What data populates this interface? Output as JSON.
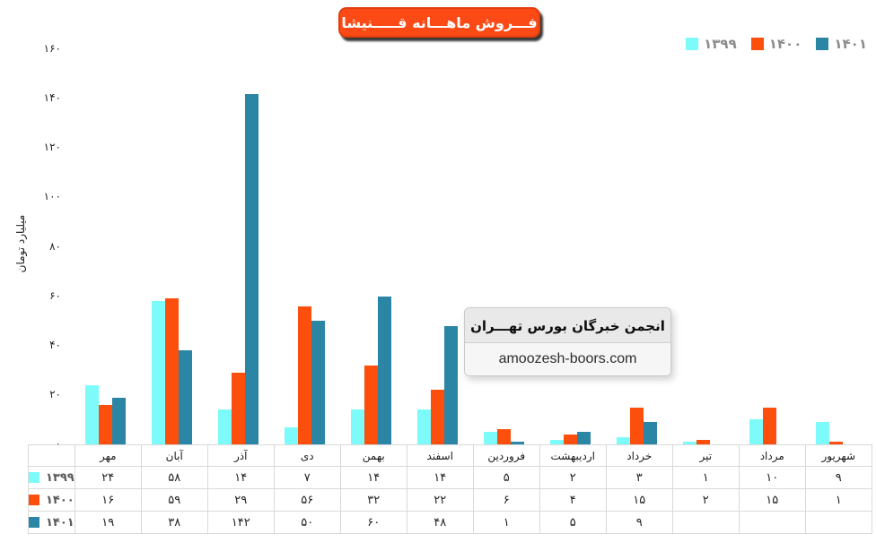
{
  "title": "فـــروش ماهـــانه قـــــنیشا",
  "watermark": {
    "line1": "انجمن خبرگان بورس تهـــران",
    "line2": "amoozesh-boors.com"
  },
  "legend": [
    {
      "label": "۱۳۹۹",
      "color": "#7DFBFB"
    },
    {
      "label": "۱۴۰۰",
      "color": "#FC4E0D"
    },
    {
      "label": "۱۴۰۱",
      "color": "#2B85A5"
    }
  ],
  "colors": {
    "series_1399": "#7DFBFB",
    "series_1400": "#FC4E0D",
    "series_1401": "#2B85A5",
    "title_bg": "#FB4A16",
    "table_border": "#D9D9D9"
  },
  "chart_data": {
    "type": "bar",
    "title": "فروش ماهانه قنیشا",
    "xlabel": "",
    "ylabel": "میلیارد تومان",
    "ylim": [
      0,
      160
    ],
    "grid": false,
    "legend_position": "top-right",
    "categories": [
      "مهر",
      "آبان",
      "آذر",
      "دی",
      "بهمن",
      "اسفند",
      "فروردین",
      "اردیبهشت",
      "خرداد",
      "تیر",
      "مرداد",
      "شهریور"
    ],
    "yticks": [
      {
        "value": 0,
        "label": "۰"
      },
      {
        "value": 20,
        "label": "۲۰"
      },
      {
        "value": 40,
        "label": "۴۰"
      },
      {
        "value": 60,
        "label": "۶۰"
      },
      {
        "value": 80,
        "label": "۸۰"
      },
      {
        "value": 100,
        "label": "۱۰۰"
      },
      {
        "value": 120,
        "label": "۱۲۰"
      },
      {
        "value": 140,
        "label": "۱۴۰"
      },
      {
        "value": 160,
        "label": "۱۶۰"
      }
    ],
    "series": [
      {
        "name": "۱۳۹۹",
        "color": "#7DFBFB",
        "values": [
          24,
          58,
          14,
          7,
          14,
          14,
          5,
          2,
          3,
          1,
          10,
          9
        ]
      },
      {
        "name": "۱۴۰۰",
        "color": "#FC4E0D",
        "values": [
          16,
          59,
          29,
          56,
          32,
          22,
          6,
          4,
          15,
          2,
          15,
          1
        ]
      },
      {
        "name": "۱۴۰۱",
        "color": "#2B85A5",
        "values": [
          19,
          38,
          142,
          50,
          60,
          48,
          1,
          5,
          9,
          null,
          null,
          null
        ]
      }
    ]
  },
  "table": {
    "columns": [
      "مهر",
      "آبان",
      "آذر",
      "دی",
      "بهمن",
      "اسفند",
      "فروردین",
      "اردیبهشت",
      "خرداد",
      "تیر",
      "مرداد",
      "شهریور"
    ],
    "rows": [
      {
        "year": "۱۳۹۹",
        "color": "#7DFBFB",
        "cells": [
          "۲۴",
          "۵۸",
          "۱۴",
          "۷",
          "۱۴",
          "۱۴",
          "۵",
          "۲",
          "۳",
          "۱",
          "۱۰",
          "۹"
        ]
      },
      {
        "year": "۱۴۰۰",
        "color": "#FC4E0D",
        "cells": [
          "۱۶",
          "۵۹",
          "۲۹",
          "۵۶",
          "۳۲",
          "۲۲",
          "۶",
          "۴",
          "۱۵",
          "۲",
          "۱۵",
          "۱"
        ]
      },
      {
        "year": "۱۴۰۱",
        "color": "#2B85A5",
        "cells": [
          "۱۹",
          "۳۸",
          "۱۴۲",
          "۵۰",
          "۶۰",
          "۴۸",
          "۱",
          "۵",
          "۹",
          "",
          "",
          ""
        ]
      }
    ]
  }
}
